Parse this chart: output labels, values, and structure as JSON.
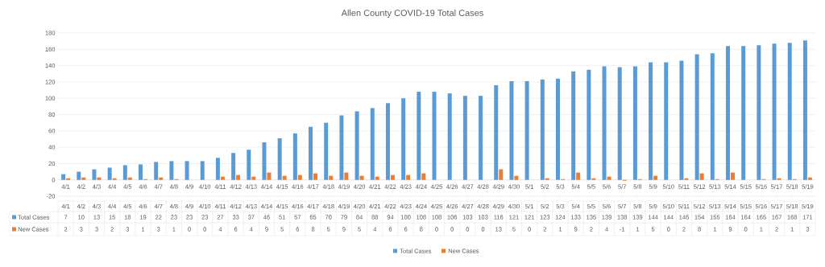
{
  "chart_data": {
    "type": "bar",
    "title": "Allen County COVID-19 Total Cases",
    "categories": [
      "4/1",
      "4/2",
      "4/3",
      "4/4",
      "4/5",
      "4/6",
      "4/7",
      "4/8",
      "4/9",
      "4/10",
      "4/11",
      "4/12",
      "4/13",
      "4/14",
      "4/15",
      "4/16",
      "4/17",
      "4/18",
      "4/19",
      "4/20",
      "4/21",
      "4/22",
      "4/23",
      "4/24",
      "4/25",
      "4/26",
      "4/27",
      "4/28",
      "4/29",
      "4/30",
      "5/1",
      "5/2",
      "5/3",
      "5/4",
      "5/5",
      "5/6",
      "5/7",
      "5/8",
      "5/9",
      "5/10",
      "5/11",
      "5/12",
      "5/13",
      "5/14",
      "5/15",
      "5/16",
      "5/17",
      "5/18",
      "5/19"
    ],
    "series": [
      {
        "name": "Total Cases",
        "color": "#5b9bd5",
        "values": [
          7,
          10,
          13,
          15,
          18,
          19,
          22,
          23,
          23,
          23,
          27,
          33,
          37,
          46,
          51,
          57,
          65,
          70,
          79,
          84,
          88,
          94,
          100,
          108,
          108,
          106,
          103,
          103,
          116,
          121,
          121,
          123,
          124,
          133,
          135,
          139,
          138,
          139,
          144,
          144,
          146,
          154,
          155,
          164,
          164,
          165,
          167,
          168,
          171
        ]
      },
      {
        "name": "New Cases",
        "color": "#ed7d31",
        "values": [
          2,
          3,
          3,
          2,
          3,
          1,
          3,
          1,
          0,
          0,
          4,
          6,
          4,
          9,
          5,
          6,
          8,
          5,
          9,
          5,
          4,
          6,
          6,
          8,
          0,
          0,
          0,
          0,
          13,
          5,
          0,
          2,
          1,
          9,
          2,
          4,
          -1,
          1,
          5,
          0,
          2,
          8,
          1,
          9,
          0,
          1,
          2,
          1,
          3
        ]
      }
    ],
    "ylim": [
      -20,
      180
    ],
    "yticks": [
      -20,
      0,
      20,
      40,
      60,
      80,
      100,
      120,
      140,
      160,
      180
    ],
    "grid": "y",
    "legend": "bottom",
    "data_labels": true
  }
}
